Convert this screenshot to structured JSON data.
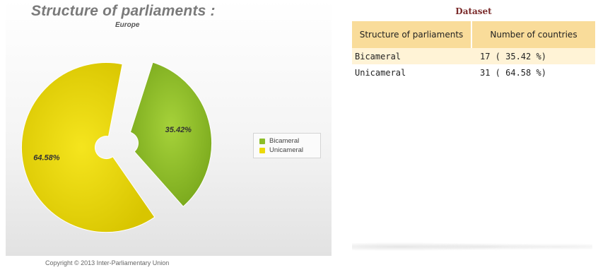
{
  "chart": {
    "title": "Structure of parliaments :",
    "subtitle": "Europe",
    "copyright": "Copyright © 2013 Inter-Parliamentary Union"
  },
  "chart_data": {
    "type": "pie",
    "title": "Structure of parliaments :",
    "subtitle": "Europe",
    "categories": [
      "Bicameral",
      "Unicameral"
    ],
    "values": [
      35.42,
      64.58
    ],
    "labels": [
      "35.42%",
      "64.58%"
    ],
    "colors": [
      "#8dbd2a",
      "#ecd90a"
    ],
    "legend_position": "right"
  },
  "legend": {
    "items": [
      {
        "label": "Bicameral",
        "color": "#8dbd2a"
      },
      {
        "label": "Unicameral",
        "color": "#ecd90a"
      }
    ]
  },
  "dataset": {
    "title": "Dataset",
    "headers": [
      "Structure of parliaments",
      "Number of countries"
    ],
    "rows": [
      {
        "structure": "Bicameral",
        "count": "17 ( 35.42 %)"
      },
      {
        "structure": "Unicameral",
        "count": "31 ( 64.58 %)"
      }
    ]
  }
}
